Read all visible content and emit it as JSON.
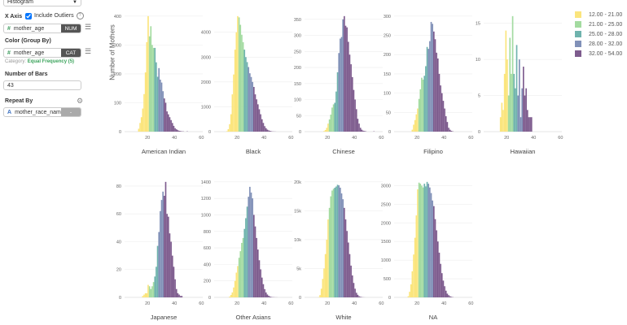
{
  "panel": {
    "chart_type": "Histogram",
    "x_axis_label": "X Axis",
    "include_outliers": "Include Outliers",
    "include_outliers_checked": true,
    "x_field": "mother_age",
    "x_type": "NUM",
    "color_label": "Color (Group By)",
    "color_field": "mother_age",
    "color_type": "CAT",
    "category_prefix": "Category:",
    "category_value": "Equal Frequency (5)",
    "bars_label": "Number of Bars",
    "bars_value": "43",
    "repeat_label": "Repeat By",
    "repeat_field": "mother_race_name",
    "repeat_type": "-"
  },
  "chart_data": {
    "type": "bar",
    "subtype": "histogram-small-multiples",
    "ylabel": "Number of Mothers",
    "xlim": [
      3,
      61
    ],
    "x_ticks": [
      20,
      40,
      60
    ],
    "grid": "horizontal",
    "legend_position": "top-right",
    "legend": [
      {
        "label": "12.00 - 21.00",
        "color": "#fbe57d",
        "from": 12,
        "to": 21
      },
      {
        "label": "21.00 - 25.00",
        "color": "#a3dba0",
        "from": 21,
        "to": 25
      },
      {
        "label": "25.00 - 28.00",
        "color": "#6fb3ad",
        "from": 25,
        "to": 28
      },
      {
        "label": "28.00 - 32.00",
        "color": "#8191b8",
        "from": 28,
        "to": 32
      },
      {
        "label": "32.00 - 54.00",
        "color": "#7e5c8e",
        "from": 32,
        "to": 54
      }
    ],
    "bin_start": 12,
    "bin_width": 1,
    "panels": [
      {
        "title": "American Indian",
        "y_ticks": [
          0,
          100,
          200,
          300,
          400
        ],
        "y_tick_labels": [
          "0",
          "100",
          "200",
          "300",
          "400"
        ],
        "counts": [
          0,
          10,
          30,
          50,
          80,
          130,
          205,
          310,
          400,
          330,
          365,
          300,
          290,
          290,
          240,
          190,
          220,
          180,
          170,
          140,
          115,
          100,
          70,
          60,
          50,
          40,
          30,
          20,
          12,
          8,
          5,
          3,
          2,
          1,
          1,
          0,
          0,
          1,
          0,
          0,
          0,
          0,
          0
        ]
      },
      {
        "title": "Black",
        "y_ticks": [
          0,
          1000,
          2000,
          3000,
          4000
        ],
        "y_tick_labels": [
          "0",
          "1000",
          "2000",
          "3000",
          "4000"
        ],
        "counts": [
          20,
          100,
          300,
          700,
          1500,
          2300,
          3300,
          4000,
          4650,
          4600,
          4300,
          3900,
          3600,
          3300,
          3000,
          2800,
          2600,
          2350,
          2200,
          2000,
          1800,
          1500,
          1300,
          1100,
          900,
          700,
          500,
          350,
          220,
          140,
          80,
          50,
          30,
          15,
          8,
          5,
          3,
          0,
          0,
          0,
          0,
          0,
          0
        ]
      },
      {
        "title": "Chinese",
        "y_ticks": [
          0,
          50,
          100,
          150,
          200,
          250,
          300,
          350
        ],
        "y_tick_labels": [
          "0",
          "50",
          "100",
          "150",
          "200",
          "250",
          "300",
          "350"
        ],
        "counts": [
          0,
          0,
          0,
          0,
          0,
          2,
          5,
          12,
          25,
          38,
          53,
          75,
          85,
          90,
          125,
          185,
          245,
          290,
          295,
          350,
          360,
          330,
          325,
          280,
          240,
          210,
          170,
          130,
          100,
          70,
          40,
          25,
          12,
          6,
          3,
          2,
          1,
          0,
          0,
          0,
          0,
          0,
          1
        ]
      },
      {
        "title": "Filipino",
        "y_ticks": [
          0,
          50,
          100,
          150,
          200,
          250,
          300
        ],
        "y_tick_labels": [
          "0",
          "50",
          "100",
          "150",
          "200",
          "250",
          "300"
        ],
        "counts": [
          0,
          0,
          0,
          0,
          5,
          18,
          30,
          45,
          60,
          85,
          110,
          140,
          135,
          145,
          170,
          220,
          215,
          235,
          285,
          280,
          260,
          240,
          205,
          190,
          150,
          120,
          100,
          80,
          60,
          40,
          25,
          10,
          5,
          2,
          1,
          0,
          0,
          0,
          0,
          0,
          0,
          0,
          0
        ]
      },
      {
        "title": "Hawaiian",
        "y_ticks": [
          0,
          5,
          10,
          15
        ],
        "y_tick_labels": [
          "0",
          "5",
          "10",
          "15"
        ],
        "counts": [
          0,
          0,
          0,
          2,
          4,
          3,
          8,
          14,
          10,
          5,
          13,
          8,
          16,
          8,
          6,
          12,
          5,
          10,
          2,
          6,
          9,
          5,
          6,
          3,
          2,
          2,
          2,
          0,
          0,
          0,
          0,
          0,
          0,
          0,
          0,
          0,
          0,
          0,
          0,
          0,
          0,
          0,
          0
        ]
      },
      {
        "title": "Japanese",
        "y_ticks": [
          0,
          20,
          40,
          60,
          80
        ],
        "y_tick_labels": [
          "0",
          "20",
          "40",
          "60",
          "80"
        ],
        "counts": [
          0,
          0,
          0,
          0,
          1,
          2,
          3,
          3,
          9,
          8,
          6,
          8,
          11,
          15,
          22,
          37,
          47,
          62,
          70,
          76,
          73,
          83,
          60,
          58,
          46,
          40,
          30,
          22,
          13,
          6,
          3,
          2,
          1,
          1,
          0,
          0,
          0,
          0,
          0,
          0,
          0,
          0,
          0
        ]
      },
      {
        "title": "Other Asians",
        "y_ticks": [
          0,
          200,
          400,
          600,
          800,
          1000,
          1200,
          1400
        ],
        "y_tick_labels": [
          "0",
          "200",
          "400",
          "600",
          "800",
          "1000",
          "1200",
          "1400"
        ],
        "counts": [
          0,
          0,
          10,
          30,
          60,
          120,
          200,
          300,
          380,
          480,
          560,
          660,
          720,
          830,
          960,
          1100,
          1220,
          1340,
          1270,
          1200,
          1000,
          860,
          720,
          580,
          450,
          340,
          240,
          160,
          100,
          60,
          35,
          20,
          10,
          5,
          3,
          2,
          1,
          1,
          0,
          0,
          0,
          0,
          0
        ]
      },
      {
        "title": "White",
        "y_ticks": [
          0,
          5000,
          10000,
          15000,
          20000
        ],
        "y_tick_labels": [
          "0",
          "5k",
          "10k",
          "15k",
          "20k"
        ],
        "counts": [
          0,
          50,
          400,
          1500,
          3200,
          5000,
          7500,
          10000,
          13500,
          15500,
          17500,
          18500,
          18800,
          19000,
          19200,
          19500,
          19400,
          19000,
          18000,
          17000,
          15500,
          13500,
          11500,
          9500,
          7500,
          5500,
          3800,
          2500,
          1500,
          800,
          450,
          200,
          100,
          50,
          20,
          10,
          0,
          0,
          0,
          0,
          0,
          0,
          0
        ]
      },
      {
        "title": "NA",
        "y_ticks": [
          0,
          500,
          1000,
          1500,
          2000,
          2500,
          3000
        ],
        "y_tick_labels": [
          "0",
          "500",
          "1000",
          "1500",
          "2000",
          "2500",
          "3000"
        ],
        "counts": [
          0,
          30,
          150,
          350,
          700,
          1150,
          1600,
          2200,
          2900,
          3080,
          3050,
          3000,
          2950,
          3050,
          2980,
          3100,
          3050,
          2950,
          2800,
          2600,
          2450,
          2100,
          1800,
          1500,
          1200,
          900,
          650,
          450,
          300,
          180,
          100,
          60,
          30,
          15,
          8,
          0,
          0,
          0,
          0,
          0,
          0,
          0,
          0
        ]
      }
    ]
  }
}
